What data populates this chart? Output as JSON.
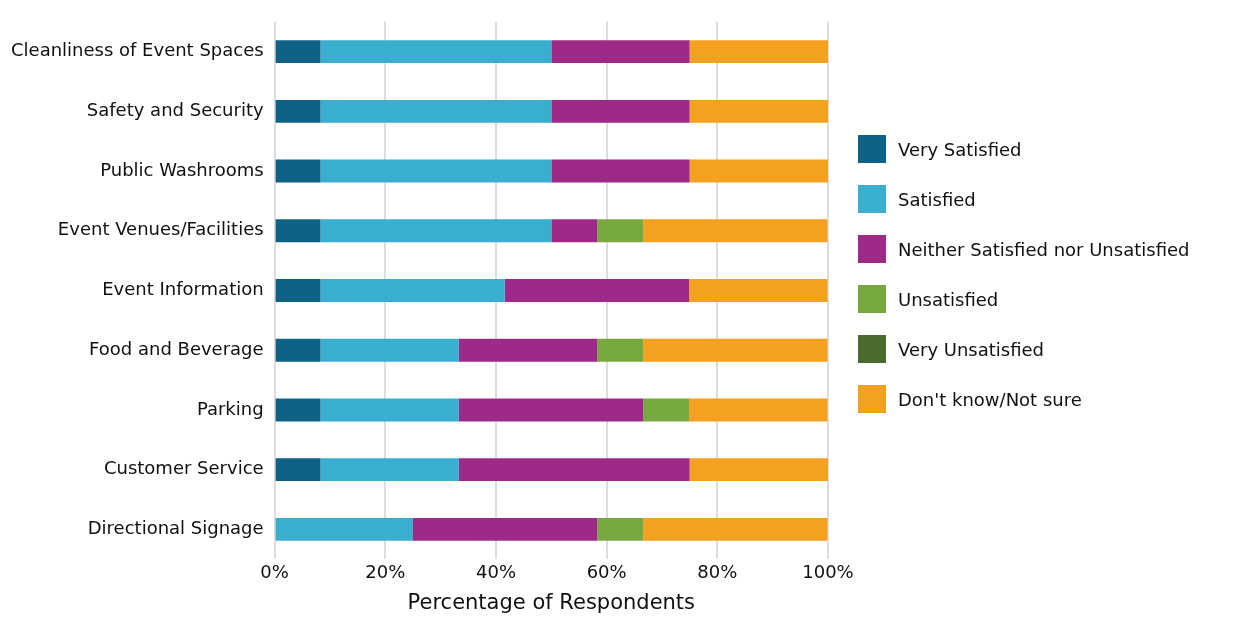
{
  "chart_data": {
    "type": "bar",
    "orientation": "horizontal",
    "stacked": true,
    "xlabel": "Percentage of Respondents",
    "categories": [
      "Cleanliness of Event Spaces",
      "Safety and Security",
      "Public Washrooms",
      "Event Venues/Facilities",
      "Event Information",
      "Food and Beverage",
      "Parking",
      "Customer Service",
      "Directional Signage"
    ],
    "series": [
      {
        "name": "Very Satisfied",
        "color": "#0f6186",
        "values": [
          8.3,
          8.3,
          8.3,
          8.3,
          8.3,
          8.3,
          8.3,
          8.3,
          0
        ]
      },
      {
        "name": "Satisfied",
        "color": "#3aaecf",
        "values": [
          41.7,
          41.7,
          41.7,
          41.7,
          33.3,
          25,
          25,
          25,
          25
        ]
      },
      {
        "name": "Neither Satisfied nor Unsatisfied",
        "color": "#9d2a86",
        "values": [
          25,
          25,
          25,
          8.3,
          33.3,
          25,
          33.3,
          41.7,
          33.3
        ]
      },
      {
        "name": "Unsatisfied",
        "color": "#78a840",
        "values": [
          0,
          0,
          0,
          8.3,
          0,
          8.3,
          8.3,
          0,
          8.3
        ]
      },
      {
        "name": "Very Unsatisfied",
        "color": "#4a6a2e",
        "values": [
          0,
          0,
          0,
          0,
          0,
          0,
          0,
          0,
          0
        ]
      },
      {
        "name": "Don't know/Not sure",
        "color": "#f4a020",
        "values": [
          25,
          25,
          25,
          33.3,
          25,
          33.3,
          25,
          25,
          33.3
        ]
      }
    ],
    "xlim": [
      0,
      100
    ],
    "xticks": [
      {
        "value": 0,
        "label": "0%"
      },
      {
        "value": 20,
        "label": "20%"
      },
      {
        "value": 40,
        "label": "40%"
      },
      {
        "value": 60,
        "label": "60%"
      },
      {
        "value": 80,
        "label": "80%"
      },
      {
        "value": 100,
        "label": "100%"
      }
    ],
    "grid": "x",
    "legend": "right"
  }
}
